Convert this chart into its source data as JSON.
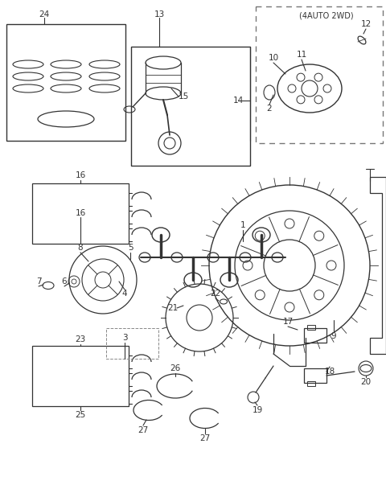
{
  "bg_color": "#ffffff",
  "fg_color": "#1a1a1a",
  "fig_width": 4.8,
  "fig_height": 6.08,
  "dpi": 100,
  "lc": "#333333",
  "subtitle_4auto": "(4AUTO 2WD)"
}
